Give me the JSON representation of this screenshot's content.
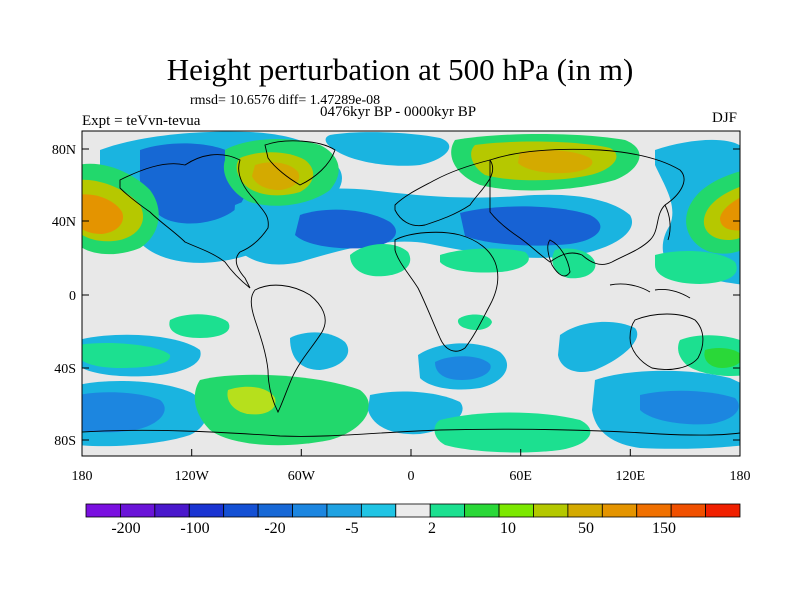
{
  "title": "Height perturbation at 500 hPa (in m)",
  "stats": "rmsd= 10.6576 diff= 1.47289e-08",
  "period": "0476kyr BP - 0000kyr BP",
  "experiment": "Expt = teVvn-tevua",
  "season": "DJF",
  "lat_ticks": [
    "80N",
    "40N",
    "0",
    "40S",
    "80S"
  ],
  "lon_ticks": [
    "180",
    "120W",
    "60W",
    "0",
    "60E",
    "120E",
    "180"
  ],
  "colorbar": {
    "colors": [
      "#7a10e0",
      "#6a14d8",
      "#4a18cc",
      "#1a34d2",
      "#1450d4",
      "#1768d6",
      "#1c86e0",
      "#1fa2e2",
      "#20c4e4",
      "#ececec",
      "#1ce090",
      "#2ad838",
      "#7ce800",
      "#b4c800",
      "#d4aa00",
      "#e49400",
      "#f07000",
      "#f05000",
      "#f02000"
    ],
    "labels": [
      "-200",
      "-100",
      "-20",
      "-5",
      "2",
      "10",
      "50",
      "150"
    ]
  }
}
